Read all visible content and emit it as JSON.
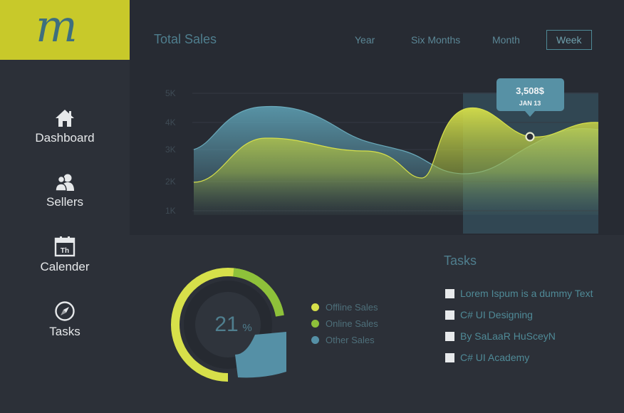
{
  "logo": {
    "letter": "m"
  },
  "sidebar": {
    "items": [
      {
        "label": "Dashboard",
        "icon": "home-icon"
      },
      {
        "label": "Sellers",
        "icon": "users-icon"
      },
      {
        "label": "Calender",
        "icon": "calendar-icon",
        "icon_text": "Th"
      },
      {
        "label": "Tasks",
        "icon": "compass-icon"
      }
    ]
  },
  "header": {
    "title": "Total Sales",
    "periods": [
      "Year",
      "Six Months",
      "Month",
      "Week"
    ],
    "selected_period": "Week"
  },
  "chart_data": {
    "type": "area",
    "title": "Total Sales",
    "y_tick_labels": [
      "5K",
      "4K",
      "3K",
      "2K",
      "1K"
    ],
    "ylim": [
      1000,
      5000
    ],
    "tooltip": {
      "value": "3,508$",
      "date": "JAN 13"
    },
    "colors": {
      "series_blue": "#5a98ab",
      "series_yellow": "#d7e04a",
      "highlight": "#3a5e6c"
    }
  },
  "donut": {
    "percent_value": "21",
    "percent_sign": "%",
    "segments": [
      {
        "name": "Offline Sales",
        "color": "#d7e04a"
      },
      {
        "name": "Online Sales",
        "color": "#8ec13a"
      },
      {
        "name": "Other Sales",
        "color": "#5590a6"
      }
    ]
  },
  "tasks": {
    "title": "Tasks",
    "items": [
      "Lorem Ispum is a dummy Text",
      "C# UI Designing",
      "By SaLaaR HuSceyN",
      "C# UI Academy"
    ]
  },
  "colors": {
    "accent": "#c8c92a",
    "teal": "#4f7e8e",
    "background": "#2a2e36"
  }
}
